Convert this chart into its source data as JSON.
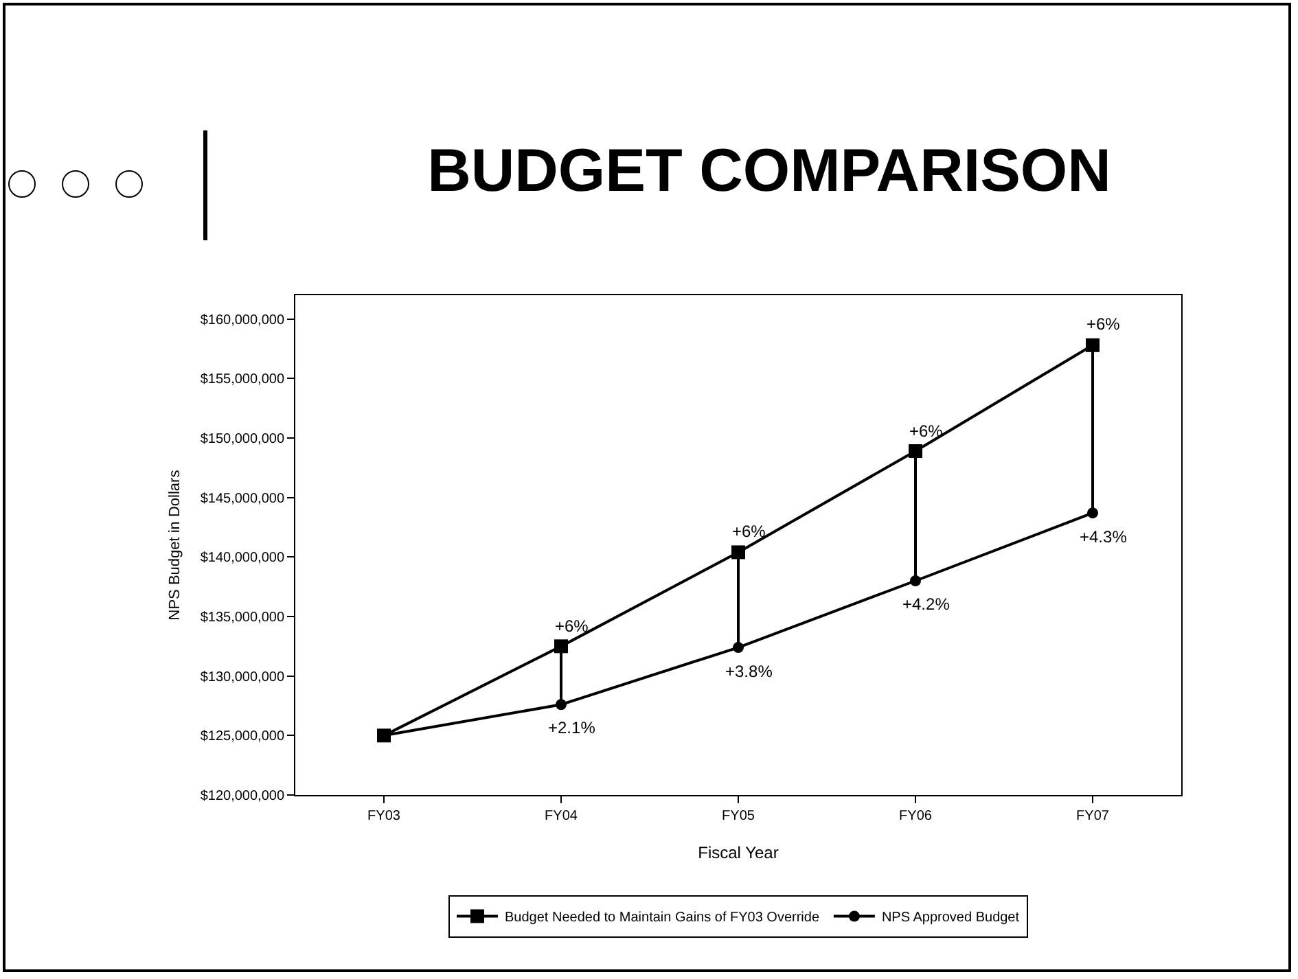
{
  "chart_data": {
    "type": "line",
    "title": "BUDGET COMPARISON",
    "xlabel": "Fiscal Year",
    "ylabel": "NPS Budget in Dollars",
    "categories": [
      "FY03",
      "FY04",
      "FY05",
      "FY06",
      "FY07"
    ],
    "series": [
      {
        "name": "Budget Needed to Maintain Gains of FY03 Override",
        "color": "#000000",
        "marker": "square",
        "values": [
          125000000,
          132500000,
          140400000,
          148900000,
          157800000
        ]
      },
      {
        "name": "NPS Approved Budget",
        "color": "#000000",
        "marker": "circle",
        "values": [
          125000000,
          127600000,
          132400000,
          138000000,
          143700000
        ]
      }
    ],
    "ylim": [
      120000000,
      162000000
    ],
    "yticks": [
      {
        "value": 120000000,
        "label": "$120,000,000"
      },
      {
        "value": 125000000,
        "label": "$125,000,000"
      },
      {
        "value": 130000000,
        "label": "$130,000,000"
      },
      {
        "value": 135000000,
        "label": "$135,000,000"
      },
      {
        "value": 140000000,
        "label": "$140,000,000"
      },
      {
        "value": 145000000,
        "label": "$145,000,000"
      },
      {
        "value": 150000000,
        "label": "$150,000,000"
      },
      {
        "value": 155000000,
        "label": "$155,000,000"
      },
      {
        "value": 160000000,
        "label": "$160,000,000"
      }
    ],
    "annotations": [
      {
        "text": "+6%",
        "x": "FY04",
        "y": 132500000
      },
      {
        "text": "+6%",
        "x": "FY05",
        "y": 140400000
      },
      {
        "text": "+6%",
        "x": "FY06",
        "y": 148900000
      },
      {
        "text": "+6%",
        "x": "FY07",
        "y": 157800000
      },
      {
        "text": "+2.1%",
        "x": "FY04",
        "y": 127600000
      },
      {
        "text": "+3.8%",
        "x": "FY05",
        "y": 132400000
      },
      {
        "text": "+4.2%",
        "x": "FY06",
        "y": 138000000
      },
      {
        "text": "+4.3%",
        "x": "FY07",
        "y": 143700000
      }
    ],
    "grid": false,
    "legend": "bottom",
    "line_style": "solid"
  }
}
